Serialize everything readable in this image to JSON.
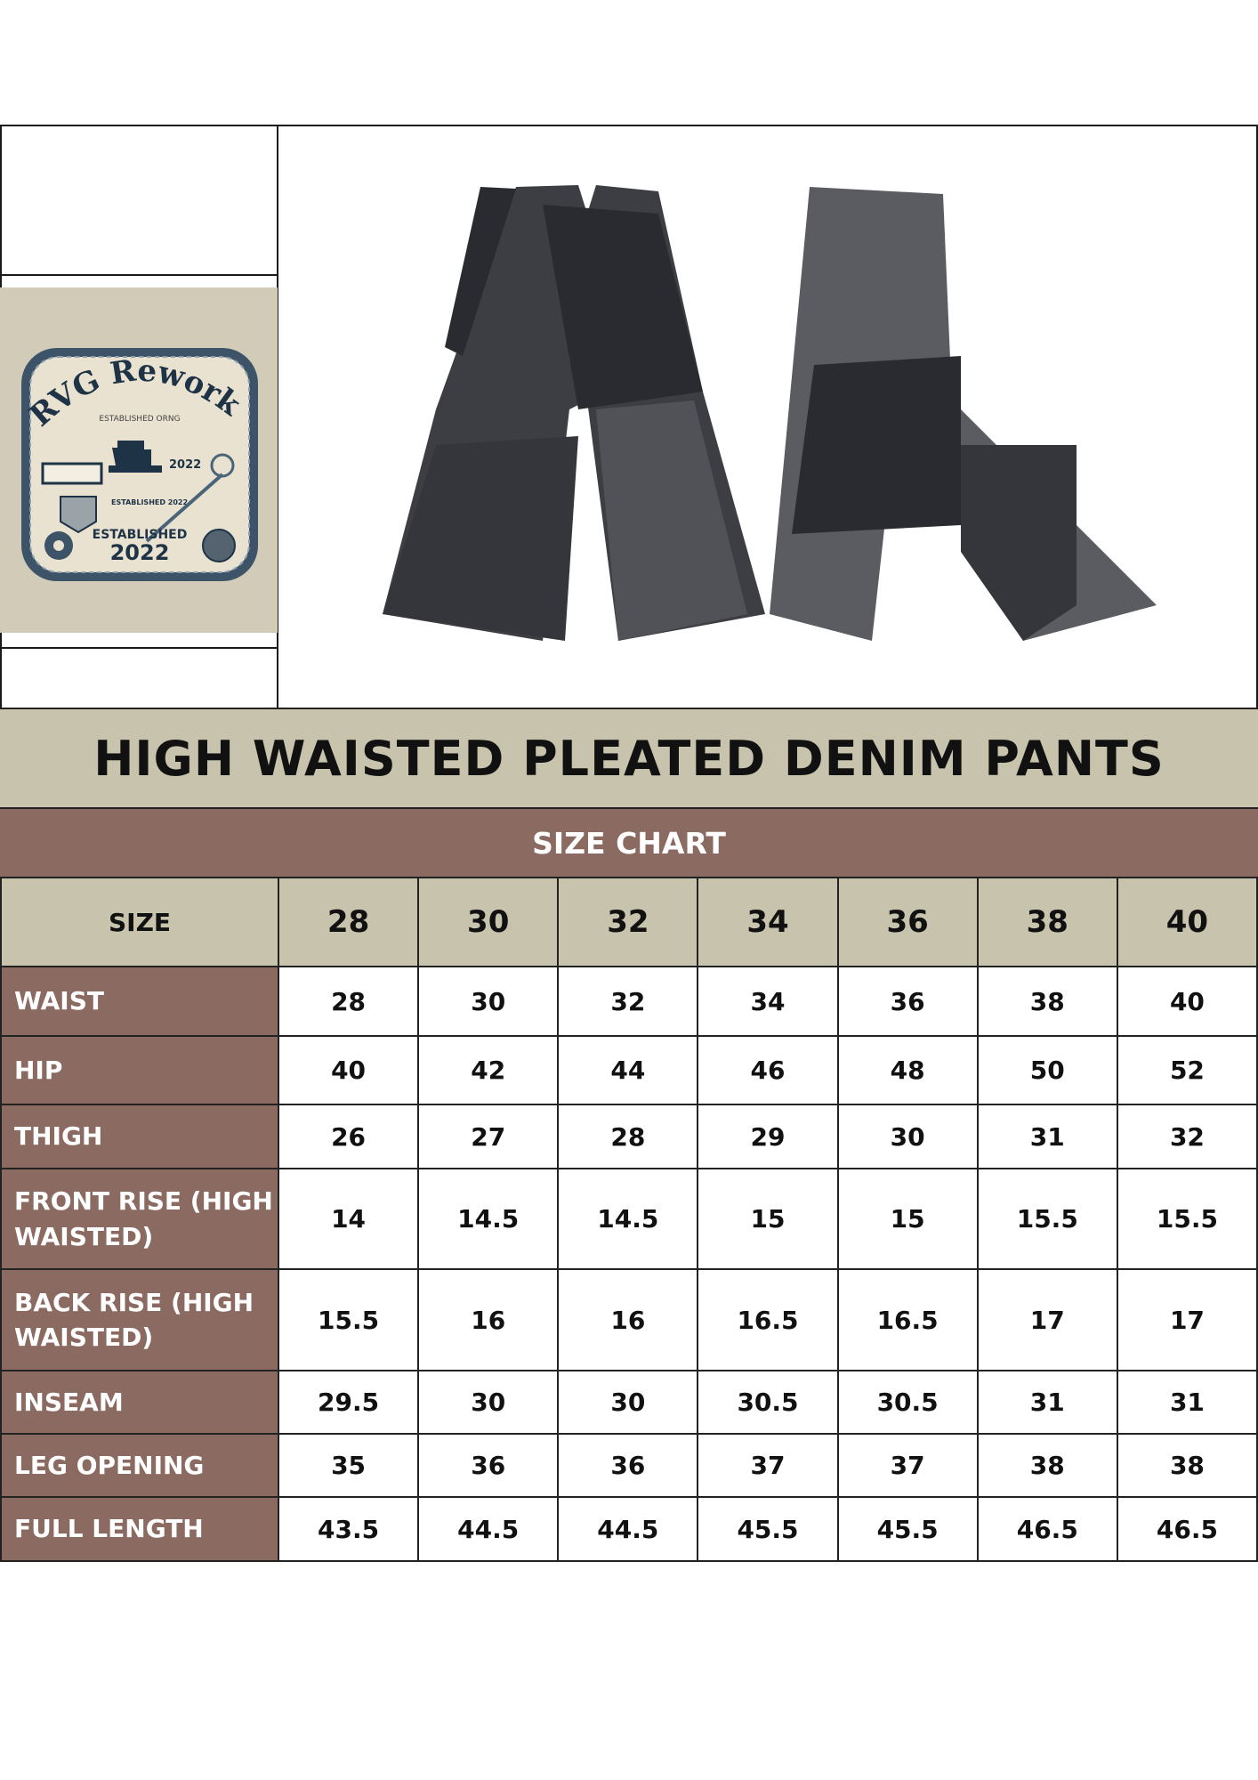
{
  "logo": {
    "brand": "RVG Reworks",
    "arc_text": "ESTABLISHED ORNG",
    "year_small": "2022",
    "established_small": "ESTABLISHED 2022",
    "established": "ESTABLISHED",
    "year": "2022"
  },
  "title": "HIGH WAISTED PLEATED DENIM PANTS",
  "subtitle": "SIZE CHART",
  "colors": {
    "header_beige": "#c8c3ad",
    "label_brown": "#8b6a61"
  },
  "table": {
    "header_label": "SIZE",
    "sizes": [
      "28",
      "30",
      "32",
      "34",
      "36",
      "38",
      "40"
    ],
    "rows": [
      {
        "label": "WAIST",
        "values": [
          "28",
          "30",
          "32",
          "34",
          "36",
          "38",
          "40"
        ]
      },
      {
        "label": "HIP",
        "values": [
          "40",
          "42",
          "44",
          "46",
          "48",
          "50",
          "52"
        ]
      },
      {
        "label": "THIGH",
        "values": [
          "26",
          "27",
          "28",
          "29",
          "30",
          "31",
          "32"
        ]
      },
      {
        "label": "FRONT RISE (HIGH WAISTED)",
        "values": [
          "14",
          "14.5",
          "14.5",
          "15",
          "15",
          "15.5",
          "15.5"
        ]
      },
      {
        "label": "BACK RISE (HIGH WAISTED)",
        "values": [
          "15.5",
          "16",
          "16",
          "16.5",
          "16.5",
          "17",
          "17"
        ]
      },
      {
        "label": "INSEAM",
        "values": [
          "29.5",
          "30",
          "30",
          "30.5",
          "30.5",
          "31",
          "31"
        ]
      },
      {
        "label": "LEG OPENING",
        "values": [
          "35",
          "36",
          "36",
          "37",
          "37",
          "38",
          "38"
        ]
      },
      {
        "label": "FULL LENGTH",
        "values": [
          "43.5",
          "44.5",
          "44.5",
          "45.5",
          "45.5",
          "46.5",
          "46.5"
        ]
      }
    ]
  }
}
